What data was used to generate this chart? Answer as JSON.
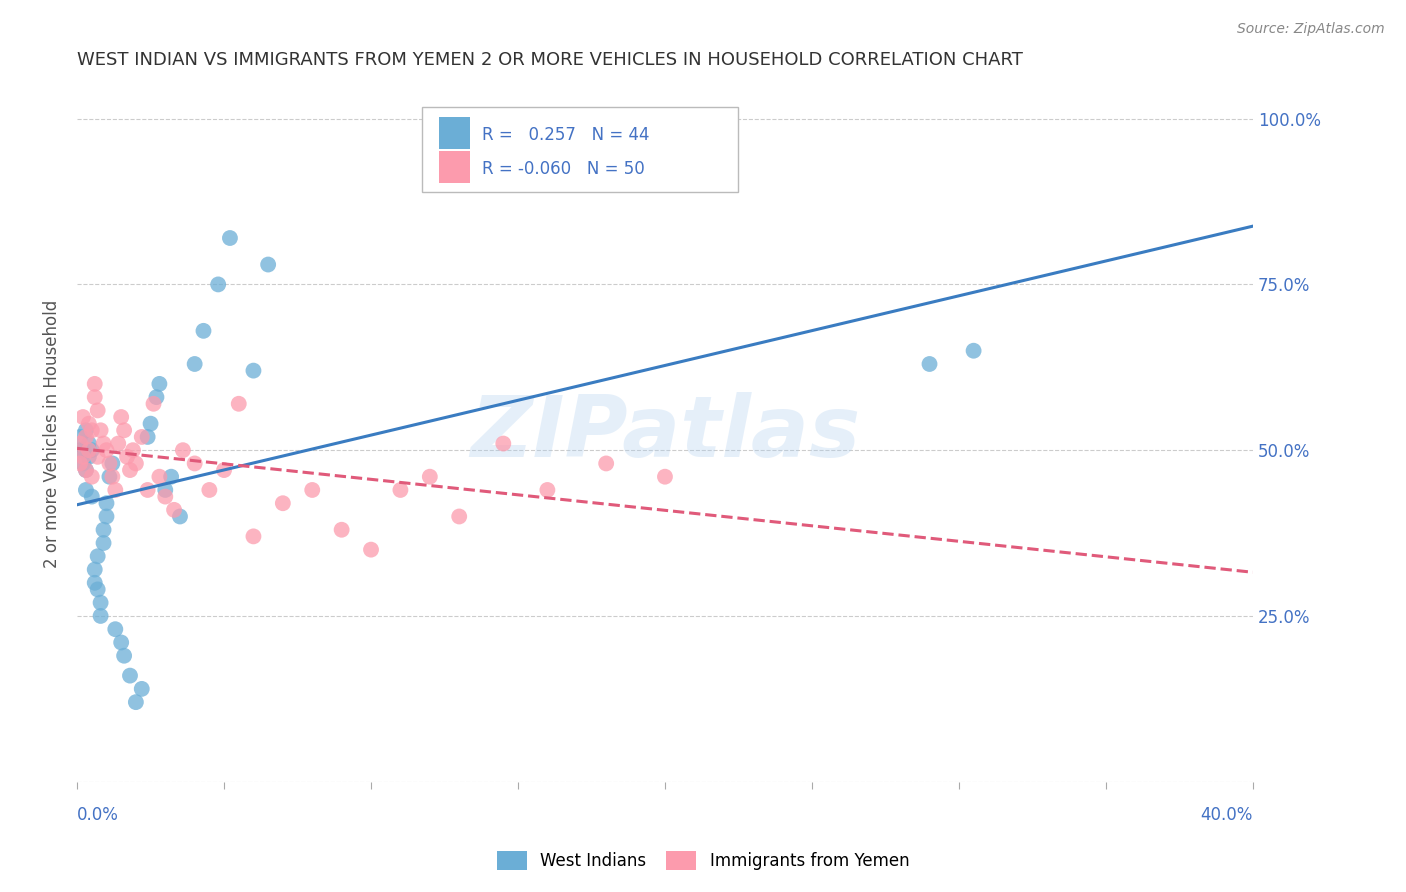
{
  "title": "WEST INDIAN VS IMMIGRANTS FROM YEMEN 2 OR MORE VEHICLES IN HOUSEHOLD CORRELATION CHART",
  "source": "Source: ZipAtlas.com",
  "ylabel": "2 or more Vehicles in Household",
  "legend_blue_r": "0.257",
  "legend_blue_n": "44",
  "legend_pink_r": "-0.060",
  "legend_pink_n": "50",
  "blue_label": "West Indians",
  "pink_label": "Immigrants from Yemen",
  "blue_color": "#6baed6",
  "pink_color": "#fc9bad",
  "blue_line_color": "#3a7cc1",
  "pink_line_color": "#e05a7a",
  "background_color": "#ffffff",
  "grid_color": "#cccccc",
  "title_color": "#333333",
  "axis_color": "#4472c4",
  "watermark": "ZIPatlas",
  "blue_x": [
    0.001,
    0.001,
    0.002,
    0.002,
    0.003,
    0.003,
    0.003,
    0.004,
    0.004,
    0.005,
    0.005,
    0.006,
    0.006,
    0.007,
    0.007,
    0.008,
    0.008,
    0.009,
    0.009,
    0.01,
    0.01,
    0.011,
    0.012,
    0.013,
    0.015,
    0.016,
    0.018,
    0.02,
    0.022,
    0.024,
    0.025,
    0.027,
    0.028,
    0.03,
    0.032,
    0.035,
    0.04,
    0.043,
    0.048,
    0.052,
    0.06,
    0.065,
    0.29,
    0.305
  ],
  "blue_y": [
    0.52,
    0.5,
    0.48,
    0.5,
    0.44,
    0.47,
    0.53,
    0.51,
    0.49,
    0.43,
    0.5,
    0.3,
    0.32,
    0.29,
    0.34,
    0.27,
    0.25,
    0.38,
    0.36,
    0.4,
    0.42,
    0.46,
    0.48,
    0.23,
    0.21,
    0.19,
    0.16,
    0.12,
    0.14,
    0.52,
    0.54,
    0.58,
    0.6,
    0.44,
    0.46,
    0.4,
    0.63,
    0.68,
    0.75,
    0.82,
    0.62,
    0.78,
    0.63,
    0.65
  ],
  "pink_x": [
    0.001,
    0.001,
    0.002,
    0.002,
    0.003,
    0.003,
    0.004,
    0.004,
    0.005,
    0.005,
    0.006,
    0.006,
    0.007,
    0.007,
    0.008,
    0.009,
    0.01,
    0.011,
    0.012,
    0.013,
    0.014,
    0.015,
    0.016,
    0.017,
    0.018,
    0.019,
    0.02,
    0.022,
    0.024,
    0.026,
    0.028,
    0.03,
    0.033,
    0.036,
    0.04,
    0.045,
    0.05,
    0.055,
    0.06,
    0.07,
    0.08,
    0.09,
    0.1,
    0.11,
    0.12,
    0.13,
    0.145,
    0.16,
    0.18,
    0.2
  ],
  "pink_y": [
    0.48,
    0.51,
    0.49,
    0.55,
    0.52,
    0.47,
    0.54,
    0.5,
    0.46,
    0.53,
    0.58,
    0.6,
    0.56,
    0.49,
    0.53,
    0.51,
    0.5,
    0.48,
    0.46,
    0.44,
    0.51,
    0.55,
    0.53,
    0.49,
    0.47,
    0.5,
    0.48,
    0.52,
    0.44,
    0.57,
    0.46,
    0.43,
    0.41,
    0.5,
    0.48,
    0.44,
    0.47,
    0.57,
    0.37,
    0.42,
    0.44,
    0.38,
    0.35,
    0.44,
    0.46,
    0.4,
    0.51,
    0.44,
    0.48,
    0.46
  ],
  "xlim": [
    0.0,
    0.4
  ],
  "ylim": [
    0.0,
    1.0
  ]
}
